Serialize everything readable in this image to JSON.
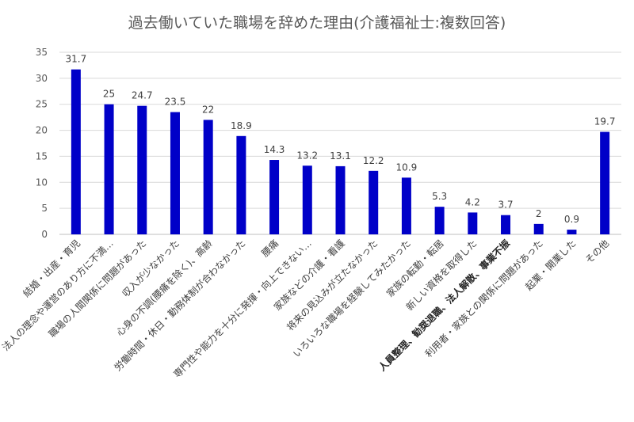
{
  "chart_data": {
    "type": "bar",
    "title": "過去働いていた職場を辞めた理由(介護福祉士:複数回答)",
    "xlabel": "",
    "ylabel": "",
    "ylim": [
      0,
      35
    ],
    "yticks": [
      "0",
      "5",
      "10",
      "15",
      "20",
      "25",
      "30",
      "35"
    ],
    "ytick_values": [
      0,
      5,
      10,
      15,
      20,
      25,
      30,
      35
    ],
    "grid": true,
    "legend": "none",
    "bar_color": "#0000c8",
    "categories": [
      "結婚・出産・育児",
      "法人の理念や運営のあり方に不満…",
      "職場の人間関係に問題があった",
      "収入が少なかった",
      "心身の不調(腰痛を除く)、高齢",
      "労働時間・休日・勤務体制が合わなかった",
      "腰痛",
      "専門性や能力を十分に発揮・向上できない…",
      "家族などの介護・看護",
      "将来の見込みが立たなかった",
      "いろいろな職場を経験してみたかった",
      "家族の転勤・転居",
      "新しい資格を取得した",
      "人員整理、勧奨退職、法人解散、事業不振",
      "利用者・家族との関係に問題があった",
      "起業・開業した",
      "その他"
    ],
    "values": [
      31.7,
      25,
      24.7,
      23.5,
      22,
      18.9,
      14.3,
      13.2,
      13.1,
      12.2,
      10.9,
      5.3,
      4.2,
      3.7,
      2,
      0.9,
      19.7
    ],
    "data_labels": [
      "31.7",
      "25",
      "24.7",
      "23.5",
      "22",
      "18.9",
      "14.3",
      "13.2",
      "13.1",
      "12.2",
      "10.9",
      "5.3",
      "4.2",
      "3.7",
      "2",
      "0.9",
      "19.7"
    ],
    "emphasized_category": "人員整理、勧奨退職、法人解散、事業不振"
  }
}
